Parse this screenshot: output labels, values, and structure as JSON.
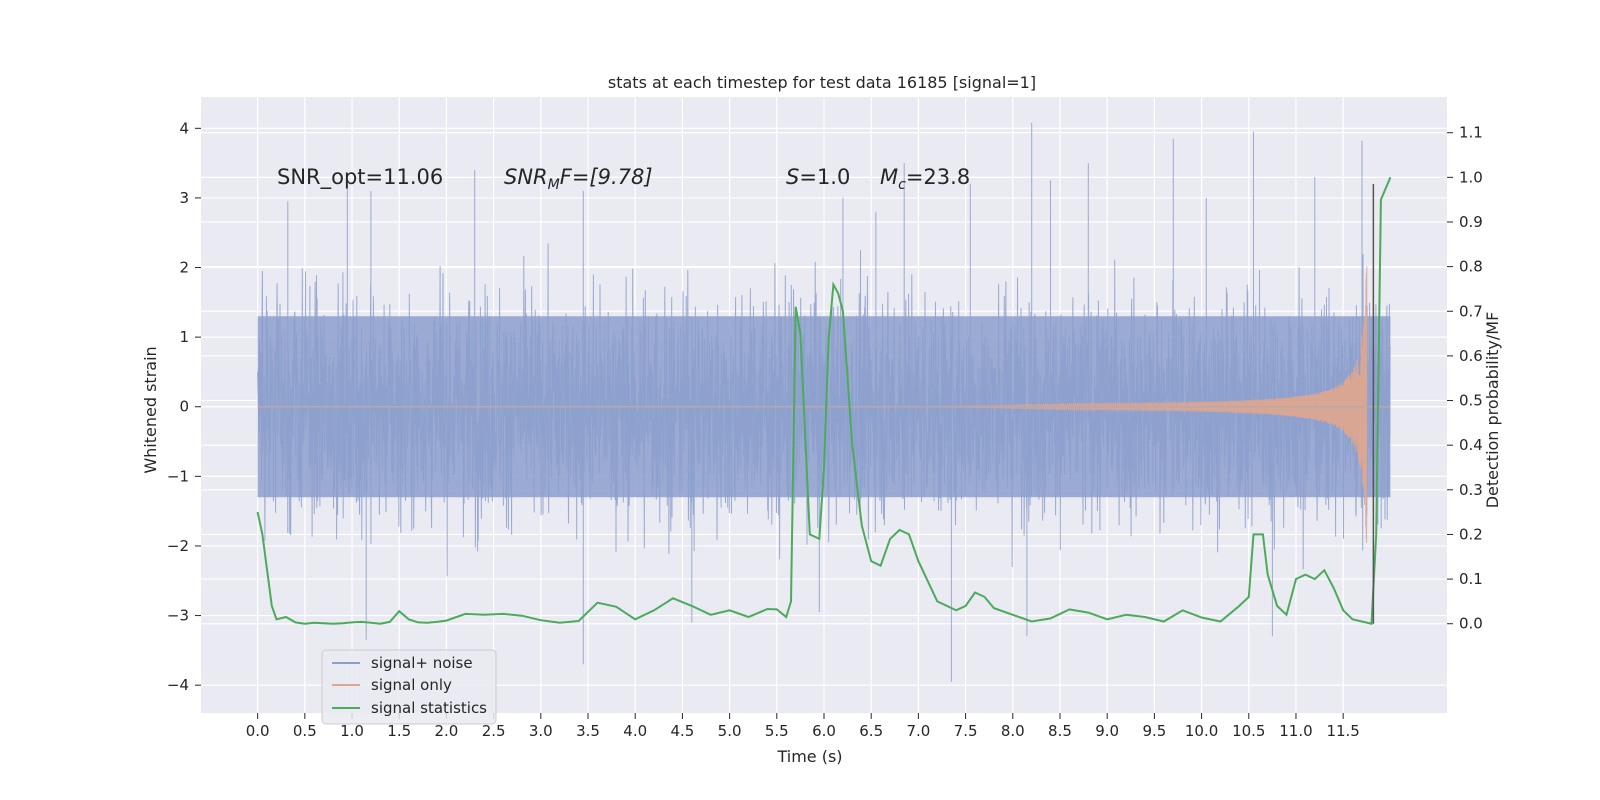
{
  "chart_data": {
    "type": "line",
    "title": "stats at each timestep for test data 16185 [signal=1]",
    "xlabel": "Time (s)",
    "ylabel_left": "Whitened strain",
    "ylabel_right": "Detection probability/MF",
    "xlim": [
      -0.6,
      12.6
    ],
    "ylim_left": [
      -4.4,
      4.45
    ],
    "ylim_right": [
      -0.2,
      1.18
    ],
    "x_ticks": [
      0.0,
      0.5,
      1.0,
      1.5,
      2.0,
      2.5,
      3.0,
      3.5,
      4.0,
      4.5,
      5.0,
      5.5,
      6.0,
      6.5,
      7.0,
      7.5,
      8.0,
      8.5,
      9.0,
      9.5,
      10.0,
      10.5,
      11.0,
      11.5
    ],
    "x_tick_labels": [
      "0.0",
      "0.5",
      "1.0",
      "1.5",
      "2.0",
      "2.5",
      "3.0",
      "3.5",
      "4.0",
      "4.5",
      "5.0",
      "5.5",
      "6.0",
      "6.5",
      "7.0",
      "7.5",
      "8.0",
      "8.5",
      "9.0",
      "9.5",
      "10.0",
      "10.5",
      "11.0",
      "11.5"
    ],
    "y_left_ticks": [
      4,
      3,
      2,
      1,
      0,
      -1,
      -2,
      -3,
      -4
    ],
    "y_left_tick_labels": [
      "4",
      "3",
      "2",
      "1",
      "0",
      "−1",
      "−2",
      "−3",
      "−4"
    ],
    "y_right_ticks": [
      1.1,
      1.0,
      0.9,
      0.8,
      0.7,
      0.6,
      0.5,
      0.4,
      0.3,
      0.2,
      0.1,
      0.0
    ],
    "y_right_tick_labels": [
      "1.1",
      "1.0",
      "0.9",
      "0.8",
      "0.7",
      "0.6",
      "0.5",
      "0.4",
      "0.3",
      "0.2",
      "0.1",
      "0.0"
    ],
    "grid": true,
    "legend_position": "lower-left",
    "annotations": {
      "snr_opt": "SNR_opt=11.06",
      "snr_mf_main": "SNR",
      "snr_mf_sub": "M",
      "snr_mf_rest": "F=[9.78]",
      "s_main": "S",
      "s_rest": "=1.0",
      "mc_main": "M",
      "mc_sub": "c",
      "mc_rest": "=23.8"
    },
    "marker_line_x": 11.82,
    "series": [
      {
        "name": "signal+ noise",
        "axis": "left",
        "color": "#8c9fcc",
        "x_range": [
          0.0,
          12.0
        ],
        "envelope": {
          "core": 1.3,
          "typical_peak": 2.0,
          "max": 4.08,
          "min": -3.95
        },
        "spikes": [
          [
            0.32,
            2.95
          ],
          [
            0.95,
            3.2
          ],
          [
            1.2,
            3.1
          ],
          [
            2.3,
            3.4
          ],
          [
            3.45,
            3.1
          ],
          [
            6.2,
            3.0
          ],
          [
            6.55,
            2.8
          ],
          [
            6.85,
            3.5
          ],
          [
            7.55,
            3.2
          ],
          [
            8.2,
            4.08
          ],
          [
            8.4,
            3.25
          ],
          [
            8.8,
            3.5
          ],
          [
            9.7,
            3.85
          ],
          [
            10.05,
            3.0
          ],
          [
            10.55,
            3.95
          ],
          [
            11.2,
            3.3
          ],
          [
            11.7,
            3.82
          ],
          [
            1.15,
            -3.35
          ],
          [
            3.45,
            -3.7
          ],
          [
            4.6,
            -3.1
          ],
          [
            7.35,
            -3.95
          ],
          [
            8.15,
            -3.3
          ],
          [
            10.75,
            -3.3
          ],
          [
            5.95,
            -2.95
          ]
        ]
      },
      {
        "name": "signal only",
        "axis": "left",
        "color": "#e1a68e",
        "description_points": {
          "start_x": 7.0,
          "end_x": 11.75,
          "peak_amplitude": 2.35
        }
      },
      {
        "name": "signal statistics",
        "axis": "right",
        "color": "#4caa5b",
        "x": [
          0.0,
          0.05,
          0.1,
          0.15,
          0.2,
          0.3,
          0.4,
          0.5,
          0.6,
          0.7,
          0.8,
          0.9,
          1.0,
          1.1,
          1.2,
          1.3,
          1.4,
          1.5,
          1.6,
          1.7,
          1.8,
          1.9,
          2.0,
          2.2,
          2.4,
          2.6,
          2.8,
          3.0,
          3.2,
          3.4,
          3.6,
          3.8,
          4.0,
          4.2,
          4.4,
          4.6,
          4.8,
          5.0,
          5.2,
          5.4,
          5.5,
          5.6,
          5.65,
          5.7,
          5.75,
          5.85,
          5.95,
          6.0,
          6.05,
          6.1,
          6.15,
          6.2,
          6.3,
          6.4,
          6.5,
          6.6,
          6.7,
          6.8,
          6.9,
          7.0,
          7.2,
          7.4,
          7.5,
          7.6,
          7.7,
          7.8,
          8.0,
          8.2,
          8.4,
          8.6,
          8.8,
          9.0,
          9.2,
          9.4,
          9.6,
          9.8,
          10.0,
          10.2,
          10.4,
          10.5,
          10.55,
          10.65,
          10.7,
          10.8,
          10.9,
          11.0,
          11.1,
          11.2,
          11.3,
          11.4,
          11.5,
          11.6,
          11.7,
          11.8,
          11.85,
          11.9,
          12.0
        ],
        "values": [
          0.25,
          0.2,
          0.12,
          0.04,
          0.01,
          0.015,
          0.003,
          0.0,
          0.002,
          0.001,
          0.0,
          0.001,
          0.003,
          0.004,
          0.002,
          0.0,
          0.004,
          0.028,
          0.01,
          0.003,
          0.002,
          0.004,
          0.007,
          0.022,
          0.02,
          0.022,
          0.018,
          0.008,
          0.002,
          0.006,
          0.047,
          0.038,
          0.01,
          0.03,
          0.057,
          0.04,
          0.02,
          0.03,
          0.015,
          0.033,
          0.032,
          0.015,
          0.05,
          0.71,
          0.65,
          0.2,
          0.19,
          0.35,
          0.64,
          0.76,
          0.74,
          0.7,
          0.4,
          0.22,
          0.14,
          0.13,
          0.19,
          0.21,
          0.2,
          0.14,
          0.05,
          0.03,
          0.04,
          0.07,
          0.06,
          0.035,
          0.02,
          0.005,
          0.012,
          0.032,
          0.025,
          0.01,
          0.02,
          0.015,
          0.005,
          0.03,
          0.014,
          0.005,
          0.04,
          0.06,
          0.2,
          0.2,
          0.11,
          0.04,
          0.02,
          0.1,
          0.11,
          0.1,
          0.12,
          0.08,
          0.03,
          0.01,
          0.005,
          0.0,
          0.2,
          0.95,
          1.0
        ]
      }
    ]
  }
}
